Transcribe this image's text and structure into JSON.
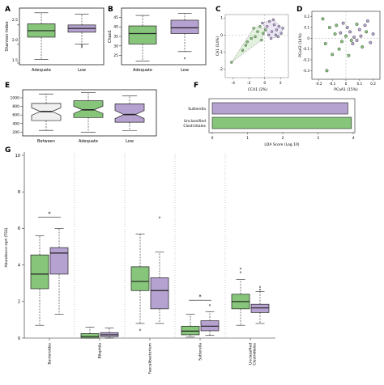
{
  "colors": {
    "adequate": "#86c57a",
    "low": "#b6a2d1",
    "between": "#f0f0f0",
    "stroke": "#222222",
    "grid": "#9a9a9a",
    "hull_adequate": "#cfe8c8",
    "hull_low": "#ded5ec"
  },
  "chart_data": [
    {
      "panel_label": "A",
      "type": "box",
      "ylabel": "Shannon Index",
      "ylim": [
        1.5,
        2.9
      ],
      "yticks": [
        "1.5",
        "2.0",
        "2.5"
      ],
      "ytick_values": [
        1.5,
        2.0,
        2.5
      ],
      "categories": [
        "Adequate",
        "Low"
      ],
      "boxes": [
        {
          "whisker_low": 1.6,
          "q1": 2.18,
          "median": 2.35,
          "q3": 2.53,
          "whisker_high": 2.82,
          "outliers": []
        },
        {
          "whisker_low": 2.0,
          "q1": 2.31,
          "median": 2.41,
          "q3": 2.5,
          "whisker_high": 2.78,
          "outliers": [
            1.97,
            1.92
          ]
        }
      ]
    },
    {
      "panel_label": "B",
      "type": "box",
      "ylabel": "Chao1",
      "ylim": [
        21,
        49
      ],
      "yticks": [
        "25",
        "30",
        "35",
        "40",
        "45"
      ],
      "ytick_values": [
        25,
        30,
        35,
        40,
        45
      ],
      "categories": [
        "Adequate",
        "Low"
      ],
      "boxes": [
        {
          "whisker_low": 22,
          "q1": 31,
          "median": 36.5,
          "q3": 40.5,
          "whisker_high": 46,
          "outliers": []
        },
        {
          "whisker_low": 27,
          "q1": 36.5,
          "median": 39.5,
          "q3": 43.5,
          "whisker_high": 47,
          "outliers": [
            23.5
          ]
        }
      ]
    },
    {
      "panel_label": "C",
      "type": "scatter",
      "xlabel": "CCA1 (2%)",
      "ylabel": "CA1 (14%)",
      "xlim": [
        -5,
        3
      ],
      "ylim": [
        -2.5,
        1.2
      ],
      "xticks": [
        "-4",
        "-2",
        "0",
        "2"
      ],
      "xtick_values": [
        -4,
        -2,
        0,
        2
      ],
      "yticks": [
        "-2",
        "-1",
        "0",
        "1"
      ],
      "ytick_values": [
        -2,
        -1,
        0,
        1
      ],
      "series": [
        {
          "group": "adequate",
          "points": [
            [
              -4.2,
              -1.6
            ],
            [
              -2.8,
              -0.9
            ],
            [
              -2.2,
              -0.4
            ],
            [
              -1.7,
              -0.2
            ],
            [
              -1.2,
              -0.1
            ],
            [
              -0.9,
              0.2
            ],
            [
              -0.6,
              0.5
            ],
            [
              -0.4,
              -0.3
            ],
            [
              -0.2,
              0.1
            ],
            [
              0.1,
              0.3
            ],
            [
              -1.4,
              0.4
            ],
            [
              -2.4,
              -0.6
            ]
          ]
        },
        {
          "group": "low",
          "points": [
            [
              0.3,
              0.5
            ],
            [
              0.6,
              0.8
            ],
            [
              0.9,
              0.2
            ],
            [
              1.2,
              0.6
            ],
            [
              1.5,
              0.3
            ],
            [
              1.8,
              0.5
            ],
            [
              2.1,
              0.1
            ],
            [
              0.8,
              -0.2
            ],
            [
              1.1,
              0.9
            ],
            [
              0.5,
              0.0
            ],
            [
              1.7,
              -0.1
            ],
            [
              2.3,
              0.4
            ],
            [
              -0.3,
              0.7
            ],
            [
              1.4,
              0.0
            ]
          ]
        }
      ]
    },
    {
      "panel_label": "D",
      "type": "scatter",
      "xlabel": "PCoA1 (15%)",
      "ylabel": "PCoA2 (14%)",
      "xlim": [
        -0.25,
        0.25
      ],
      "ylim": [
        -0.38,
        0.25
      ],
      "xticks": [
        "-0.2",
        "-0.1",
        "0",
        "0.1",
        "0.2"
      ],
      "xtick_values": [
        -0.2,
        -0.1,
        0,
        0.1,
        0.2
      ],
      "yticks": [
        "-0.3",
        "-0.2",
        "-0.1",
        "0",
        "0.1",
        "0.2"
      ],
      "ytick_values": [
        -0.3,
        -0.2,
        -0.1,
        0,
        0.1,
        0.2
      ],
      "series": [
        {
          "group": "adequate",
          "points": [
            [
              -0.17,
              0.18
            ],
            [
              -0.12,
              0.1
            ],
            [
              -0.08,
              0.04
            ],
            [
              -0.15,
              -0.05
            ],
            [
              -0.05,
              -0.1
            ],
            [
              0.0,
              0.02
            ],
            [
              0.04,
              -0.02
            ],
            [
              -0.1,
              -0.15
            ],
            [
              0.08,
              0.13
            ],
            [
              0.12,
              -0.08
            ],
            [
              -0.03,
              -0.03
            ],
            [
              -0.07,
              0.12
            ],
            [
              0.02,
              -0.16
            ],
            [
              -0.14,
              -0.3
            ],
            [
              0.15,
              0.06
            ]
          ]
        },
        {
          "group": "low",
          "points": [
            [
              -0.02,
              0.14
            ],
            [
              0.03,
              0.06
            ],
            [
              0.06,
              0.01
            ],
            [
              0.1,
              0.08
            ],
            [
              0.14,
              0.12
            ],
            [
              0.18,
              -0.04
            ],
            [
              0.05,
              -0.05
            ],
            [
              0.01,
              0.1
            ],
            [
              0.11,
              0.02
            ],
            [
              0.16,
              0.16
            ],
            [
              -0.04,
              0.05
            ],
            [
              0.08,
              -0.02
            ],
            [
              0.2,
              0.04
            ]
          ]
        }
      ]
    },
    {
      "panel_label": "E",
      "type": "box",
      "notched": true,
      "ylim": [
        150,
        1150
      ],
      "yticks": [
        "200",
        "400",
        "600",
        "800",
        "1000"
      ],
      "ytick_values": [
        200,
        400,
        600,
        800,
        1000
      ],
      "categories": [
        "Between",
        "Adequate",
        "Low"
      ],
      "boxes": [
        {
          "whisker_low": 240,
          "q1": 470,
          "median": 680,
          "q3": 870,
          "whisker_high": 1090,
          "outliers": []
        },
        {
          "whisker_low": 200,
          "q1": 540,
          "median": 720,
          "q3": 930,
          "whisker_high": 1120,
          "outliers": []
        },
        {
          "whisker_low": 230,
          "q1": 430,
          "median": 610,
          "q3": 860,
          "whisker_high": 1050,
          "outliers": []
        }
      ]
    },
    {
      "panel_label": "F",
      "type": "bar",
      "orientation": "horizontal",
      "xlabel": "LDA Score (Log 10)",
      "xlim": [
        0,
        4
      ],
      "xticks": [
        "0",
        "1",
        "2",
        "3",
        "4"
      ],
      "xtick_values": [
        0,
        1,
        2,
        3,
        4
      ],
      "categories": [
        "Sutterella",
        "Unclassified Clostridiales"
      ],
      "values": [
        3.85,
        3.95
      ],
      "groups": [
        "low",
        "adequate"
      ]
    },
    {
      "panel_label": "G",
      "type": "box",
      "ylabel": "Abundance sqrt (TSS)",
      "ylim": [
        0,
        10
      ],
      "yticks": [
        "0",
        "2",
        "4",
        "6",
        "8",
        "10"
      ],
      "ytick_values": [
        0,
        2,
        4,
        6,
        8,
        10
      ],
      "categories": [
        "Bacteroides",
        "Bilophila",
        "Faecalibacterium",
        "Sutterella",
        "Unclassified Clostridiales"
      ],
      "groups": [
        {
          "adequate": {
            "whisker_low": 0.7,
            "q1": 2.7,
            "median": 3.5,
            "q3": 4.55,
            "whisker_high": 5.6,
            "outliers": []
          },
          "low": {
            "whisker_low": 1.3,
            "q1": 3.5,
            "median": 4.65,
            "q3": 4.95,
            "whisker_high": 6.0,
            "outliers": []
          },
          "significant": true
        },
        {
          "adequate": {
            "whisker_low": 0.0,
            "q1": 0.0,
            "median": 0.08,
            "q3": 0.25,
            "whisker_high": 0.6,
            "outliers": []
          },
          "low": {
            "whisker_low": 0.0,
            "q1": 0.08,
            "median": 0.18,
            "q3": 0.3,
            "whisker_high": 0.55,
            "outliers": []
          },
          "significant": false
        },
        {
          "adequate": {
            "whisker_low": 0.8,
            "q1": 2.6,
            "median": 3.1,
            "q3": 3.9,
            "whisker_high": 5.7,
            "outliers": [
              0.45
            ]
          },
          "low": {
            "whisker_low": 0.8,
            "q1": 1.6,
            "median": 2.6,
            "q3": 3.3,
            "whisker_high": 4.7,
            "outliers": [
              6.6
            ]
          },
          "significant": false
        },
        {
          "adequate": {
            "whisker_low": 0.05,
            "q1": 0.18,
            "median": 0.38,
            "q3": 0.65,
            "whisker_high": 1.3,
            "outliers": []
          },
          "low": {
            "whisker_low": 0.15,
            "q1": 0.4,
            "median": 0.65,
            "q3": 0.95,
            "whisker_high": 1.45,
            "outliers": [
              1.8
            ]
          },
          "significant": true
        },
        {
          "adequate": {
            "whisker_low": 0.7,
            "q1": 1.6,
            "median": 2.0,
            "q3": 2.4,
            "whisker_high": 3.2,
            "outliers": [
              3.6,
              3.8
            ]
          },
          "low": {
            "whisker_low": 0.8,
            "q1": 1.4,
            "median": 1.65,
            "q3": 1.85,
            "whisker_high": 2.55,
            "outliers": [
              2.65,
              2.8
            ]
          },
          "significant": false
        }
      ]
    }
  ],
  "annotations": {
    "star": "*"
  }
}
